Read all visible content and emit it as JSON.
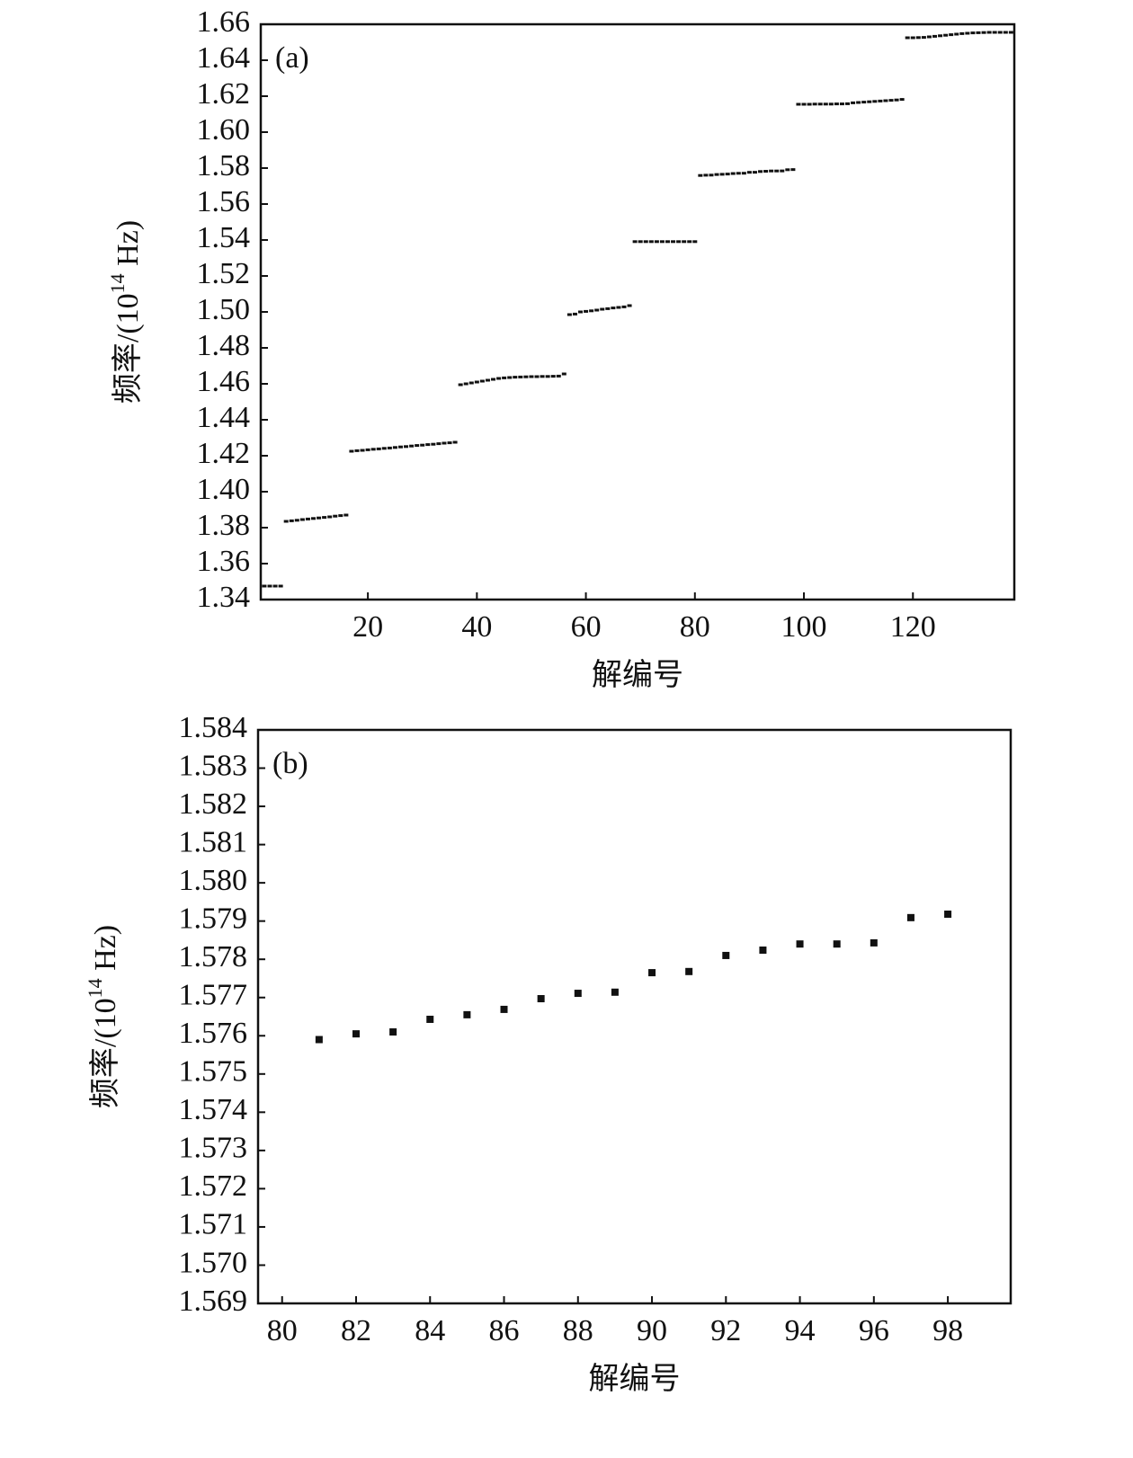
{
  "chart_data": [
    {
      "type": "scatter",
      "panel_label": "(a)",
      "xlabel": "解编号",
      "ylabel": [
        "频率/(10",
        "14",
        " Hz)"
      ],
      "color": "#111111",
      "x": [
        1,
        2,
        3,
        4,
        5,
        6,
        7,
        8,
        9,
        10,
        11,
        12,
        13,
        14,
        15,
        16,
        17,
        18,
        19,
        20,
        21,
        22,
        23,
        24,
        25,
        26,
        27,
        28,
        29,
        30,
        31,
        32,
        33,
        34,
        35,
        36,
        37,
        38,
        39,
        40,
        41,
        42,
        43,
        44,
        45,
        46,
        47,
        48,
        49,
        50,
        51,
        52,
        53,
        54,
        55,
        56,
        57,
        58,
        59,
        60,
        61,
        62,
        63,
        64,
        65,
        66,
        67,
        68,
        69,
        70,
        71,
        72,
        73,
        74,
        75,
        76,
        77,
        78,
        79,
        80,
        81,
        82,
        83,
        84,
        85,
        86,
        87,
        88,
        89,
        90,
        91,
        92,
        93,
        94,
        95,
        96,
        97,
        98,
        99,
        100,
        101,
        102,
        103,
        104,
        105,
        106,
        107,
        108,
        109,
        110,
        111,
        112,
        113,
        114,
        115,
        116,
        117,
        118,
        119,
        120,
        121,
        122,
        123,
        124,
        125,
        126,
        127,
        128,
        129,
        130,
        131,
        132,
        133,
        134,
        135,
        136,
        137,
        138
      ],
      "values": [
        1.3475,
        1.3475,
        1.3475,
        1.3475,
        1.3835,
        1.3838,
        1.3841,
        1.3845,
        1.3848,
        1.3851,
        1.3854,
        1.3857,
        1.386,
        1.3864,
        1.3867,
        1.387,
        1.4225,
        1.4228,
        1.423,
        1.4233,
        1.4236,
        1.4238,
        1.4241,
        1.4243,
        1.4246,
        1.4249,
        1.4251,
        1.4254,
        1.4257,
        1.4259,
        1.4262,
        1.4264,
        1.4267,
        1.427,
        1.4272,
        1.4275,
        1.4595,
        1.46,
        1.4605,
        1.461,
        1.4615,
        1.462,
        1.4625,
        1.463,
        1.4633,
        1.4635,
        1.4637,
        1.4638,
        1.4639,
        1.464,
        1.464,
        1.4641,
        1.4641,
        1.4642,
        1.4643,
        1.4655,
        1.4985,
        1.4988,
        1.5,
        1.5003,
        1.5006,
        1.501,
        1.5015,
        1.5018,
        1.5022,
        1.5025,
        1.5028,
        1.5035,
        1.5391,
        1.5391,
        1.5391,
        1.5391,
        1.5391,
        1.5391,
        1.5391,
        1.5391,
        1.5391,
        1.5391,
        1.5391,
        1.5391,
        1.5759,
        1.57605,
        1.5761,
        1.57643,
        1.57655,
        1.57669,
        1.57697,
        1.57711,
        1.57714,
        1.57765,
        1.57768,
        1.5781,
        1.57824,
        1.5784,
        1.5784,
        1.57843,
        1.57909,
        1.57918,
        1.6155,
        1.6155,
        1.6155,
        1.6156,
        1.6156,
        1.6156,
        1.6156,
        1.6157,
        1.6157,
        1.6158,
        1.6163,
        1.6165,
        1.6167,
        1.6169,
        1.6171,
        1.6173,
        1.6175,
        1.6177,
        1.6179,
        1.6182,
        1.6525,
        1.6525,
        1.6526,
        1.6527,
        1.653,
        1.6533,
        1.6536,
        1.6539,
        1.6542,
        1.6545,
        1.6548,
        1.655,
        1.6552,
        1.6553,
        1.6554,
        1.6555,
        1.6555,
        1.6555,
        1.6555,
        1.6555
      ],
      "xlim": [
        0.35,
        138.6
      ],
      "xticks": [
        20,
        40,
        60,
        80,
        100,
        120
      ],
      "ylim": [
        1.34,
        1.66
      ],
      "yticks": [
        1.34,
        1.36,
        1.38,
        {
          "value": 1.4,
          "label": "1.40"
        },
        1.42,
        1.44,
        1.46,
        1.48,
        {
          "value": 1.5,
          "label": "1.50"
        },
        1.52,
        1.54,
        1.56,
        1.58,
        {
          "value": 1.6,
          "label": "1.60"
        },
        1.62,
        1.64,
        1.66
      ]
    },
    {
      "type": "scatter",
      "panel_label": "(b)",
      "xlabel": "解编号",
      "ylabel": [
        "频率/(10",
        "14",
        " Hz)"
      ],
      "color": "#111111",
      "x": [
        81,
        82,
        83,
        84,
        85,
        86,
        87,
        88,
        89,
        90,
        91,
        92,
        93,
        94,
        95,
        96,
        97,
        98
      ],
      "values": [
        1.5759,
        1.57605,
        1.5761,
        1.57643,
        1.57655,
        1.57669,
        1.57697,
        1.57711,
        1.57714,
        1.57765,
        1.57768,
        1.5781,
        1.57824,
        1.5784,
        1.5784,
        1.57843,
        1.57909,
        1.57918
      ],
      "xlim": [
        79.35,
        99.7
      ],
      "xticks": [
        80,
        82,
        84,
        86,
        88,
        90,
        92,
        94,
        96,
        98
      ],
      "ylim": [
        1.569,
        1.584
      ],
      "yticks": [
        1.569,
        {
          "value": 1.57,
          "label": "1.570"
        },
        1.571,
        1.572,
        1.573,
        1.574,
        1.575,
        1.576,
        1.577,
        1.578,
        1.579,
        {
          "value": 1.58,
          "label": "1.580"
        },
        1.581,
        1.582,
        1.583,
        1.584
      ]
    }
  ]
}
